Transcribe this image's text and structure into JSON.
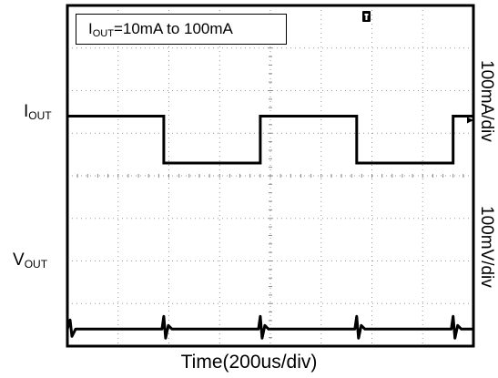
{
  "chart_data": {
    "type": "line",
    "title": "",
    "legend_box": {
      "symbol": "I",
      "subscript": "OUT",
      "rest": "=10mA to 100mA"
    },
    "xlabel": "Time(200us/div)",
    "x_divisions": 8,
    "y_divisions": 8,
    "x_unit": "us",
    "x_per_div": 200,
    "grid": "dotted",
    "series": [
      {
        "name": "IOUT",
        "label_symbol": "V",
        "label_main": "I",
        "label_sub": "OUT",
        "scale": "100mA/div",
        "low": 10,
        "high": 100,
        "unit": "mA",
        "x": [
          0,
          380,
          380,
          760,
          760,
          1140,
          1140,
          1520,
          1520,
          1600
        ],
        "values": [
          100,
          100,
          10,
          10,
          100,
          100,
          10,
          10,
          100,
          100
        ]
      },
      {
        "name": "VOUT",
        "label_main": "V",
        "label_sub": "OUT",
        "scale": "100mV/div",
        "x": [
          0,
          380,
          760,
          1140,
          1520
        ],
        "transient_at": [
          0,
          380,
          760,
          1140,
          1520
        ],
        "values": [
          0,
          0,
          0,
          0,
          0
        ],
        "unit": "mV",
        "note": "load transient spikes at each current step"
      }
    ]
  },
  "labels": {
    "iout_main": "I",
    "iout_sub": "OUT",
    "vout_main": "V",
    "vout_sub": "OUT",
    "right_top": "100mA/div",
    "right_bottom": "100mV/div"
  }
}
